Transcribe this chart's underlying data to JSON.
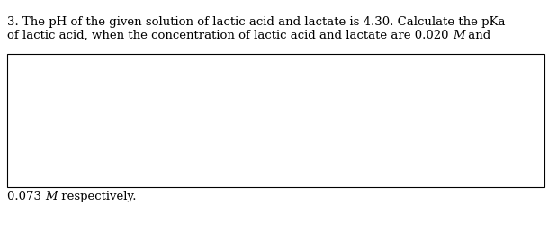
{
  "line1": "3. The pH of the given solution of lactic acid and lactate is 4.30. Calculate the pKa",
  "line2_part1": "of lactic acid, when the concentration of lactic acid and lactate are 0.020 ",
  "line2_italic": "M",
  "line2_part2": " and",
  "line3_part1": "0.073 ",
  "line3_italic": "M",
  "line3_part2": " respectively.",
  "background_color": "#ffffff",
  "text_color": "#000000",
  "font_size": 9.5,
  "fig_width": 6.2,
  "fig_height": 2.5,
  "dpi": 100
}
